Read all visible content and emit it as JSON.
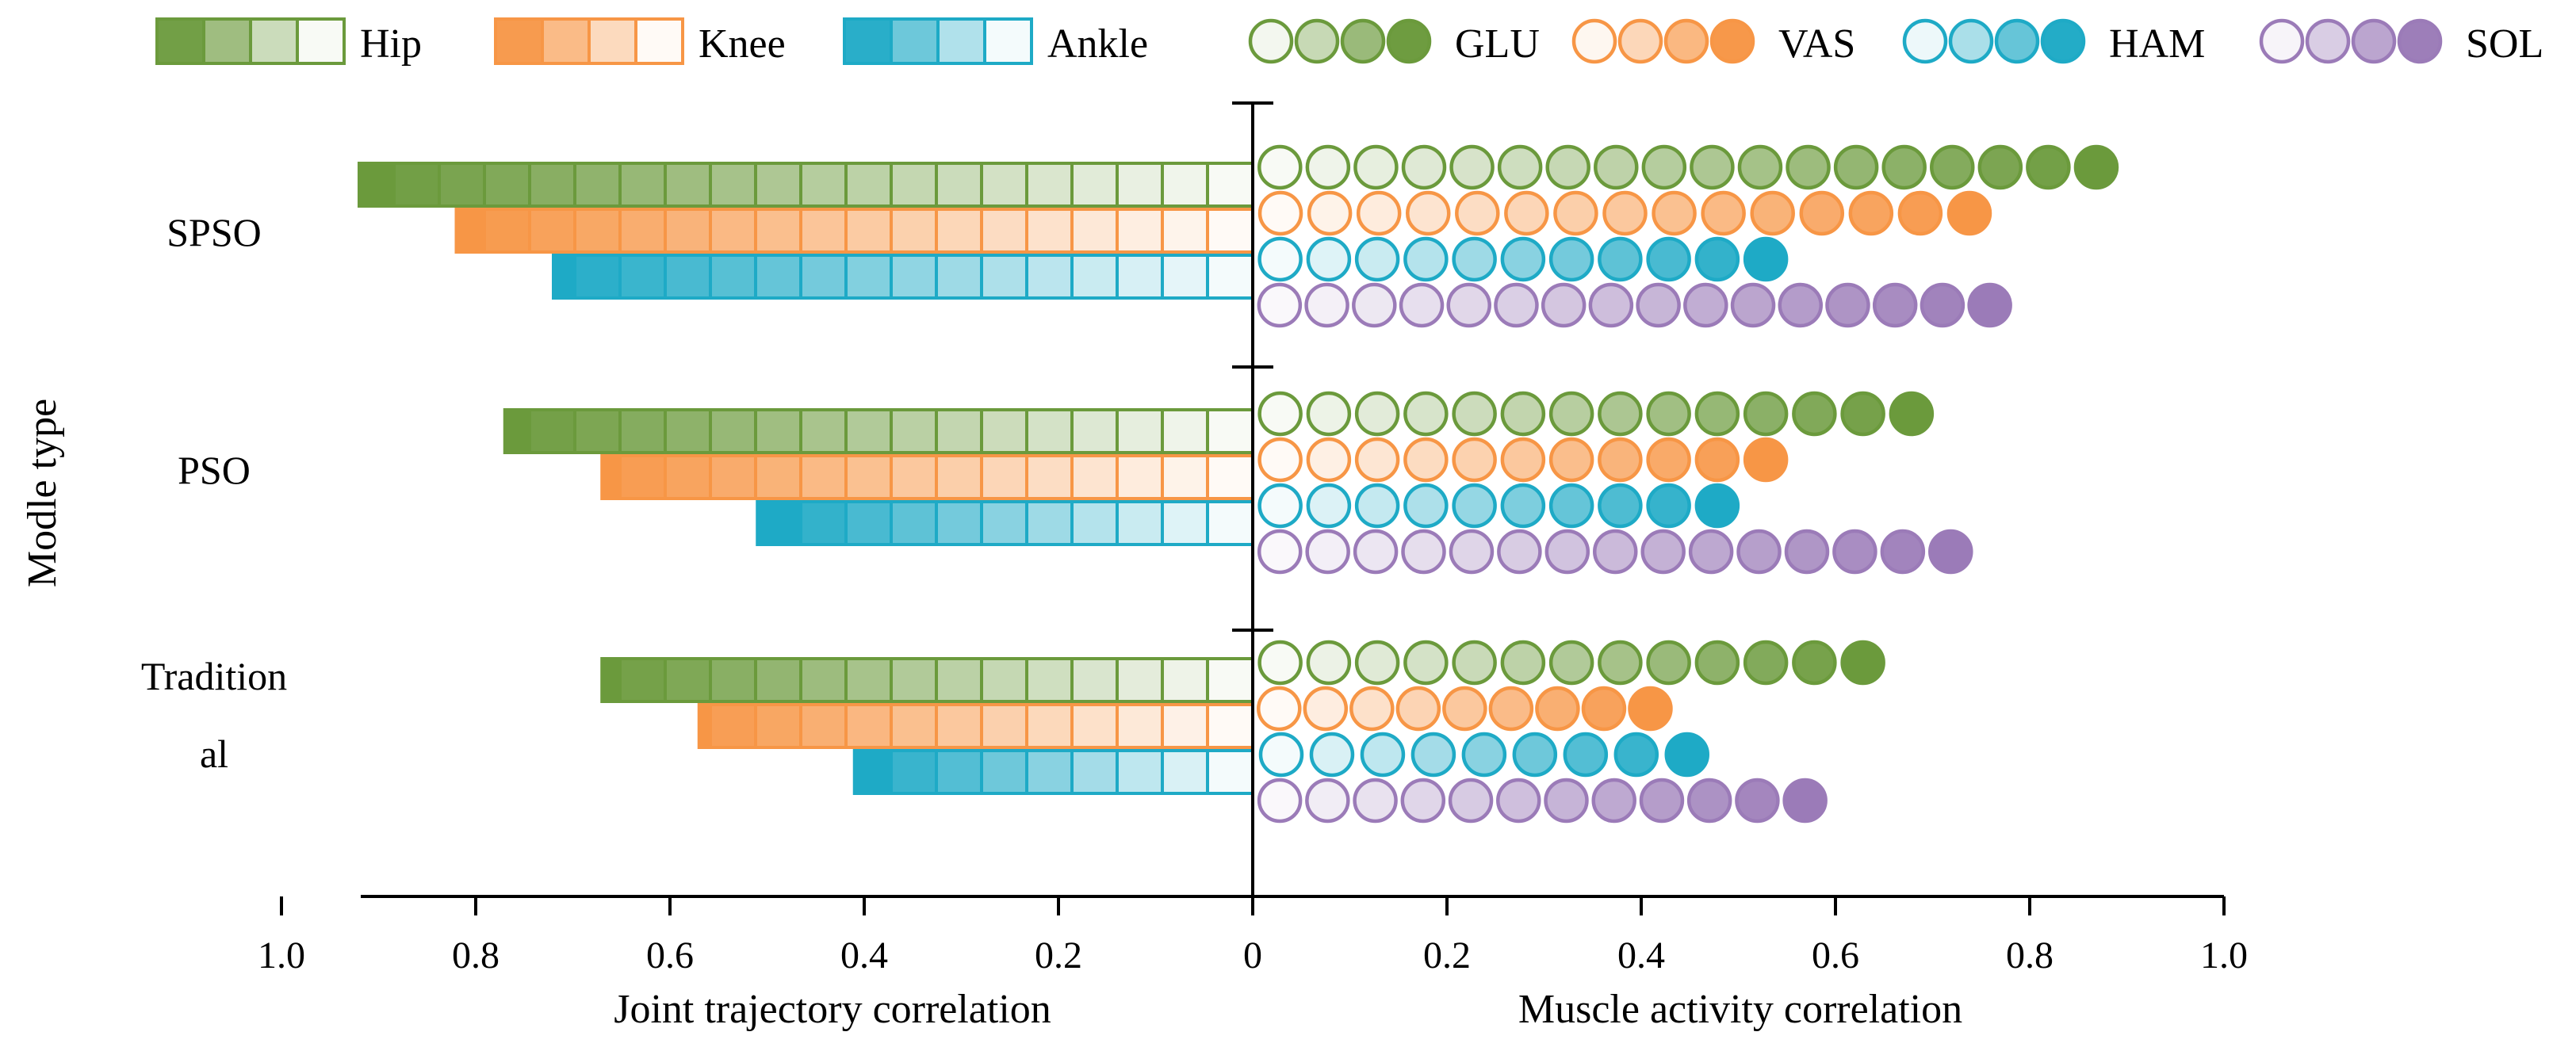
{
  "chart_data": {
    "type": "bar",
    "categories": [
      "SPSO",
      "PSO",
      "Tradition al"
    ],
    "category_label_lines": [
      [
        "SPSO"
      ],
      [
        "PSO"
      ],
      [
        "Tradition",
        "al"
      ]
    ],
    "ylabel": "Modle type",
    "left_panel": {
      "xlabel": "Joint trajectory correlation",
      "xlim": [
        1.0,
        0
      ],
      "ticks": [
        "1.0",
        "0.8",
        "0.6",
        "0.4",
        "0.2",
        "0"
      ],
      "tick_values": [
        1.0,
        0.8,
        0.6,
        0.4,
        0.2,
        0
      ],
      "series": [
        {
          "name": "Hip",
          "color": "#6b9a3c",
          "values": [
            0.92,
            0.77,
            0.67
          ]
        },
        {
          "name": "Knee",
          "color": "#f79646",
          "values": [
            0.82,
            0.67,
            0.57
          ]
        },
        {
          "name": "Ankle",
          "color": "#1eaac6",
          "values": [
            0.72,
            0.51,
            0.41
          ]
        }
      ]
    },
    "right_panel": {
      "xlabel": "Muscle activity correlation",
      "xlim": [
        0,
        1.0
      ],
      "ticks": [
        "0",
        "0.2",
        "0.4",
        "0.6",
        "0.8",
        "1.0"
      ],
      "tick_values": [
        0,
        0.2,
        0.4,
        0.6,
        0.8,
        1.0
      ],
      "series": [
        {
          "name": "GLU",
          "color": "#6b9a3c",
          "values": [
            0.89,
            0.7,
            0.65
          ]
        },
        {
          "name": "VAS",
          "color": "#f79646",
          "values": [
            0.76,
            0.55,
            0.43
          ]
        },
        {
          "name": "HAM",
          "color": "#1eaac6",
          "values": [
            0.55,
            0.5,
            0.47
          ]
        },
        {
          "name": "SOL",
          "color": "#9b7bb8",
          "values": [
            0.78,
            0.74,
            0.59
          ]
        }
      ]
    },
    "legend": {
      "position": "top",
      "items": [
        "Hip",
        "Knee",
        "Ankle",
        "GLU",
        "VAS",
        "HAM",
        "SOL"
      ]
    }
  }
}
